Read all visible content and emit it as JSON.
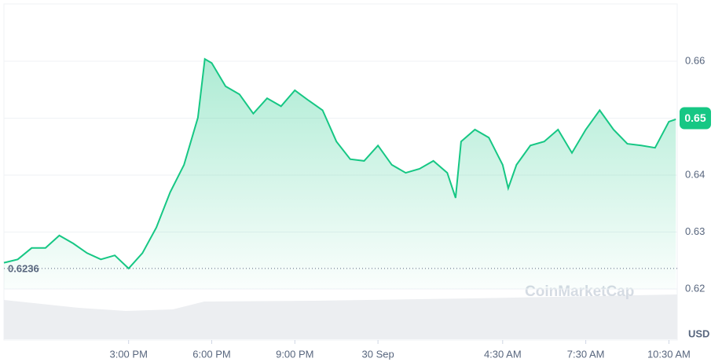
{
  "chart_data": {
    "type": "line",
    "x": [
      10.5,
      11,
      11.5,
      12,
      12.5,
      13,
      13.5,
      14,
      14.5,
      15,
      15.5,
      16,
      16.5,
      17,
      17.5,
      17.75,
      18,
      18.5,
      19,
      19.5,
      20,
      20.5,
      21,
      21.5,
      22,
      22.5,
      23,
      23.5,
      24,
      24.5,
      25,
      25.5,
      26,
      26.5,
      26.8,
      27,
      27.5,
      28,
      28.5,
      28.7,
      29,
      29.5,
      30,
      30.5,
      31,
      31.5,
      32,
      32.5,
      33,
      33.5,
      34,
      34.5,
      34.75
    ],
    "values": [
      0.6246,
      0.6252,
      0.6272,
      0.6272,
      0.6294,
      0.628,
      0.6263,
      0.6252,
      0.6259,
      0.6236,
      0.6263,
      0.6308,
      0.637,
      0.6418,
      0.6501,
      0.6604,
      0.6597,
      0.6556,
      0.6542,
      0.6508,
      0.6535,
      0.6521,
      0.6549,
      0.6531,
      0.6514,
      0.6459,
      0.6428,
      0.6425,
      0.6452,
      0.6418,
      0.6404,
      0.6411,
      0.6425,
      0.6404,
      0.636,
      0.6459,
      0.648,
      0.6466,
      0.6418,
      0.6377,
      0.6418,
      0.6452,
      0.6459,
      0.648,
      0.6439,
      0.648,
      0.6514,
      0.648,
      0.6455,
      0.6452,
      0.6448,
      0.6494,
      0.6498
    ],
    "color": "#16c784",
    "xlim": [
      10.5,
      34.8
    ],
    "xticks": [
      {
        "value": 15,
        "label": "3:00 PM"
      },
      {
        "value": 18,
        "label": "6:00 PM"
      },
      {
        "value": 21,
        "label": "9:00 PM"
      },
      {
        "value": 24,
        "label": "30 Sep"
      },
      {
        "value": 28.5,
        "label": "4:30 AM"
      },
      {
        "value": 31.5,
        "label": "7:30 AM"
      },
      {
        "value": 34.5,
        "label": "10:30 AM"
      }
    ],
    "ylim": [
      0.62,
      0.67
    ],
    "yticks": [
      0.62,
      0.63,
      0.64,
      0.65,
      0.66
    ],
    "reference_line": 0.6236,
    "current_price": 0.65,
    "currency": "USD",
    "watermark": "CoinMarketCap",
    "grid": true
  }
}
